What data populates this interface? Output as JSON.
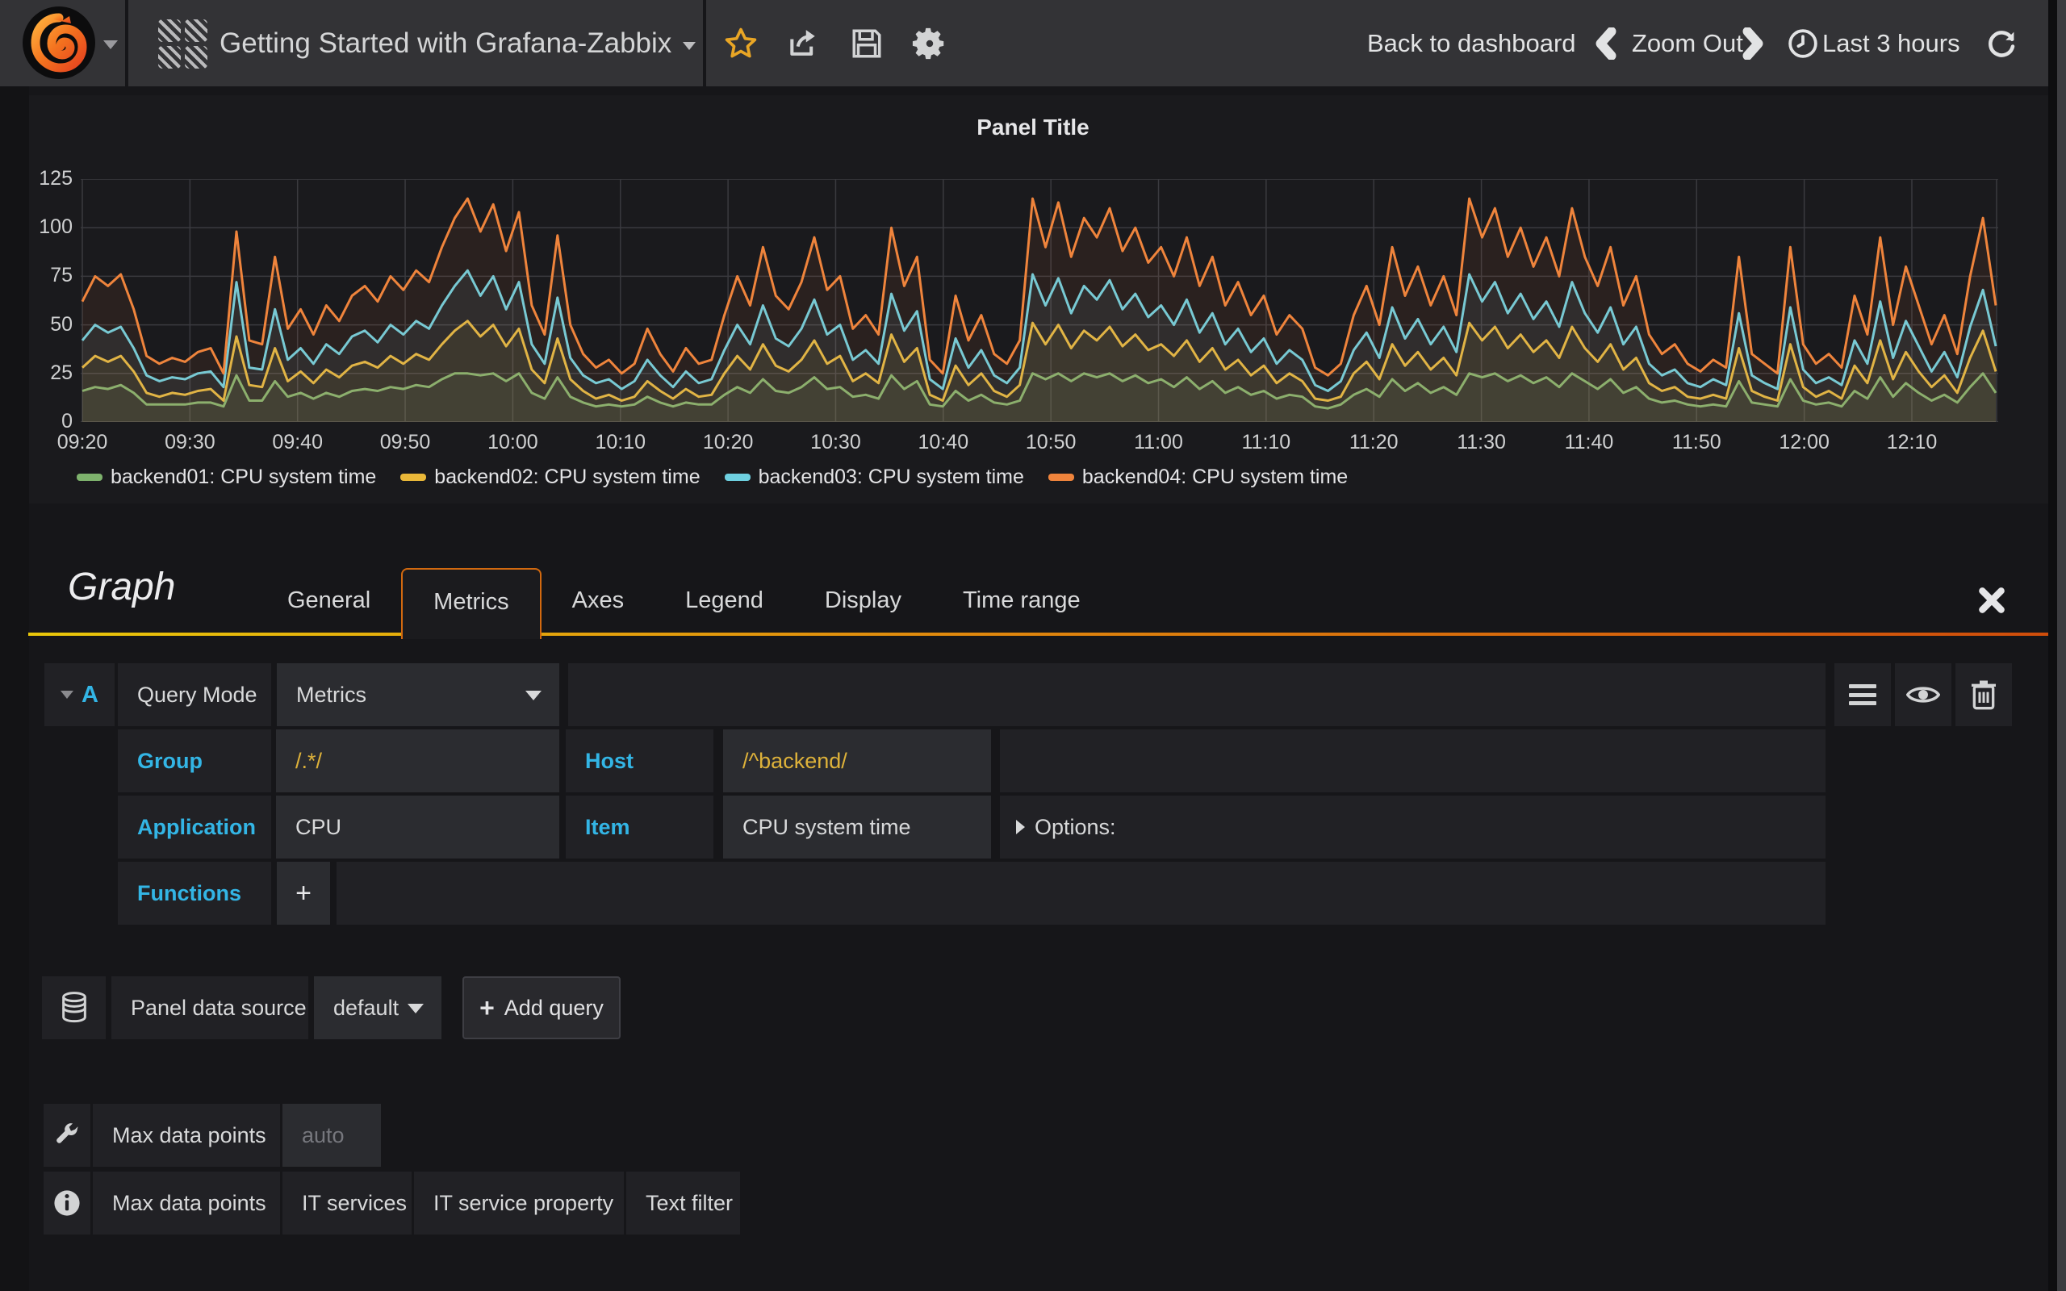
{
  "navbar": {
    "title": "Getting Started with Grafana-Zabbix",
    "back_label": "Back to dashboard",
    "zoom_out_label": "Zoom Out",
    "time_label": "Last 3 hours",
    "icons": [
      "grafana-logo",
      "dashboard-grid-icon",
      "star-icon",
      "share-icon",
      "save-icon",
      "gear-icon",
      "chevron-left-icon",
      "chevron-right-icon",
      "clock-icon",
      "refresh-icon"
    ]
  },
  "panel": {
    "title": "Panel Title"
  },
  "chart_data": {
    "type": "line",
    "title": "Panel Title",
    "ylim": [
      0,
      125
    ],
    "y_ticks": [
      0,
      25,
      50,
      75,
      100,
      125
    ],
    "x_ticks": [
      "09:20",
      "09:30",
      "09:40",
      "09:50",
      "10:00",
      "10:10",
      "10:20",
      "10:30",
      "10:40",
      "10:50",
      "11:00",
      "11:10",
      "11:20",
      "11:30",
      "11:40",
      "11:50",
      "12:00",
      "12:10"
    ],
    "grid": true,
    "legend_position": "bottom",
    "fill_opacity": 0.08,
    "series": [
      {
        "name": "backend01: CPU system time",
        "color": "#7EB26D",
        "values": [
          16,
          18,
          17,
          19,
          15,
          9,
          9,
          9,
          9,
          10,
          10,
          8,
          24,
          11,
          11,
          21,
          13,
          15,
          12,
          15,
          13,
          16,
          17,
          16,
          18,
          17,
          19,
          18,
          22,
          25,
          25,
          24,
          25,
          21,
          25,
          15,
          12,
          23,
          13,
          10,
          8,
          9,
          8,
          9,
          13,
          10,
          8,
          10,
          9,
          9,
          14,
          18,
          15,
          22,
          16,
          15,
          18,
          23,
          17,
          18,
          13,
          14,
          12,
          24,
          17,
          21,
          9,
          8,
          16,
          11,
          14,
          10,
          9,
          11,
          25,
          22,
          25,
          21,
          25,
          23,
          25,
          21,
          24,
          20,
          22,
          18,
          23,
          17,
          21,
          15,
          18,
          14,
          16,
          12,
          14,
          13,
          8,
          7,
          9,
          14,
          17,
          13,
          22,
          16,
          20,
          15,
          18,
          14,
          25,
          23,
          25,
          21,
          24,
          20,
          23,
          18,
          25,
          21,
          17,
          22,
          15,
          18,
          12,
          10,
          11,
          9,
          8,
          9,
          8,
          21,
          10,
          9,
          8,
          22,
          11,
          9,
          10,
          8,
          16,
          12,
          23,
          13,
          20,
          15,
          11,
          14,
          10,
          18,
          25,
          15
        ]
      },
      {
        "name": "backend02: CPU system time",
        "color": "#EAB839",
        "values": [
          28,
          34,
          31,
          34,
          26,
          15,
          13,
          15,
          14,
          16,
          17,
          11,
          44,
          19,
          18,
          38,
          21,
          26,
          20,
          27,
          23,
          29,
          31,
          28,
          34,
          30,
          35,
          32,
          40,
          47,
          52,
          44,
          50,
          39,
          48,
          27,
          20,
          43,
          22,
          16,
          12,
          14,
          11,
          13,
          21,
          16,
          12,
          17,
          13,
          14,
          25,
          34,
          27,
          40,
          29,
          26,
          32,
          42,
          30,
          34,
          21,
          25,
          20,
          45,
          31,
          38,
          14,
          11,
          29,
          19,
          25,
          16,
          13,
          19,
          51,
          40,
          50,
          38,
          47,
          42,
          49,
          39,
          45,
          37,
          40,
          34,
          42,
          31,
          38,
          27,
          32,
          24,
          29,
          20,
          25,
          21,
          12,
          11,
          13,
          25,
          31,
          22,
          40,
          29,
          36,
          27,
          33,
          24,
          51,
          42,
          49,
          38,
          45,
          36,
          42,
          33,
          49,
          38,
          31,
          40,
          27,
          33,
          20,
          16,
          18,
          13,
          12,
          14,
          12,
          38,
          16,
          13,
          11,
          40,
          18,
          13,
          16,
          12,
          29,
          20,
          42,
          22,
          36,
          26,
          18,
          24,
          15,
          33,
          47,
          26
        ]
      },
      {
        "name": "backend03: CPU system time",
        "color": "#6ED0E0",
        "values": [
          42,
          50,
          46,
          49,
          38,
          24,
          21,
          23,
          22,
          25,
          26,
          18,
          72,
          28,
          27,
          58,
          32,
          38,
          30,
          40,
          35,
          44,
          47,
          41,
          50,
          45,
          52,
          48,
          60,
          70,
          78,
          65,
          75,
          58,
          72,
          40,
          30,
          64,
          33,
          24,
          20,
          22,
          17,
          21,
          32,
          24,
          18,
          26,
          20,
          22,
          37,
          50,
          40,
          60,
          43,
          39,
          48,
          63,
          45,
          50,
          32,
          37,
          30,
          66,
          47,
          57,
          22,
          17,
          43,
          28,
          37,
          24,
          20,
          28,
          76,
          60,
          74,
          56,
          70,
          63,
          73,
          58,
          66,
          54,
          60,
          50,
          63,
          46,
          56,
          40,
          48,
          36,
          43,
          30,
          37,
          32,
          19,
          16,
          21,
          37,
          46,
          33,
          59,
          43,
          53,
          40,
          49,
          36,
          76,
          62,
          72,
          56,
          66,
          53,
          62,
          49,
          72,
          56,
          46,
          59,
          40,
          49,
          30,
          24,
          27,
          20,
          18,
          22,
          19,
          56,
          24,
          20,
          17,
          59,
          27,
          20,
          23,
          19,
          42,
          30,
          62,
          33,
          52,
          39,
          26,
          36,
          23,
          49,
          68,
          39
        ]
      },
      {
        "name": "backend04: CPU system time",
        "color": "#EF843C",
        "values": [
          62,
          75,
          70,
          76,
          58,
          34,
          30,
          33,
          31,
          36,
          38,
          25,
          98,
          42,
          40,
          85,
          48,
          58,
          45,
          60,
          52,
          65,
          70,
          62,
          75,
          68,
          78,
          72,
          90,
          105,
          115,
          98,
          112,
          88,
          108,
          60,
          45,
          96,
          50,
          35,
          28,
          32,
          25,
          30,
          48,
          35,
          26,
          38,
          30,
          32,
          55,
          75,
          60,
          90,
          65,
          58,
          72,
          95,
          68,
          75,
          48,
          55,
          45,
          100,
          70,
          85,
          32,
          25,
          65,
          42,
          55,
          35,
          30,
          42,
          115,
          90,
          113,
          85,
          105,
          95,
          110,
          88,
          100,
          82,
          90,
          75,
          95,
          70,
          85,
          60,
          72,
          55,
          65,
          45,
          55,
          48,
          28,
          24,
          30,
          55,
          70,
          50,
          90,
          65,
          80,
          60,
          75,
          55,
          115,
          95,
          110,
          85,
          100,
          80,
          95,
          75,
          110,
          85,
          70,
          90,
          60,
          75,
          45,
          35,
          40,
          30,
          26,
          32,
          28,
          85,
          35,
          30,
          25,
          90,
          40,
          30,
          35,
          28,
          65,
          45,
          95,
          50,
          80,
          60,
          40,
          55,
          35,
          75,
          105,
          60
        ]
      }
    ]
  },
  "editor": {
    "title": "Graph",
    "tabs": [
      {
        "label": "General"
      },
      {
        "label": "Metrics"
      },
      {
        "label": "Axes"
      },
      {
        "label": "Legend"
      },
      {
        "label": "Display"
      },
      {
        "label": "Time range"
      }
    ],
    "active_tab": "Metrics"
  },
  "query": {
    "ref_letter": "A",
    "mode_label": "Query Mode",
    "mode_value": "Metrics",
    "group_label": "Group",
    "group_value": "/.*/",
    "host_label": "Host",
    "host_value": "/^backend/",
    "application_label": "Application",
    "application_value": "CPU",
    "item_label": "Item",
    "item_value": "CPU system time",
    "options_label": "Options:",
    "functions_label": "Functions",
    "add_function_label": "+",
    "row_icons": [
      "menu-icon",
      "eye-icon",
      "trash-icon"
    ]
  },
  "datasource_row": {
    "label": "Panel data source",
    "value": "default",
    "add_query_label": "Add query"
  },
  "settings": {
    "max_data_points_label": "Max data points",
    "max_data_points_placeholder": "auto",
    "info_tabs": [
      "Max data points",
      "IT services",
      "IT service property",
      "Text filter"
    ]
  },
  "colors": {
    "accent_blue": "#33b5e5",
    "accent_gold": "#deb23a",
    "tab_active_border": "#d2690f",
    "underline_gradient": [
      "#e9c70a",
      "#cf4d0b"
    ],
    "navbar_bg": "#333336",
    "cell_bg": "#212125",
    "field_bg": "#2b2c30"
  }
}
